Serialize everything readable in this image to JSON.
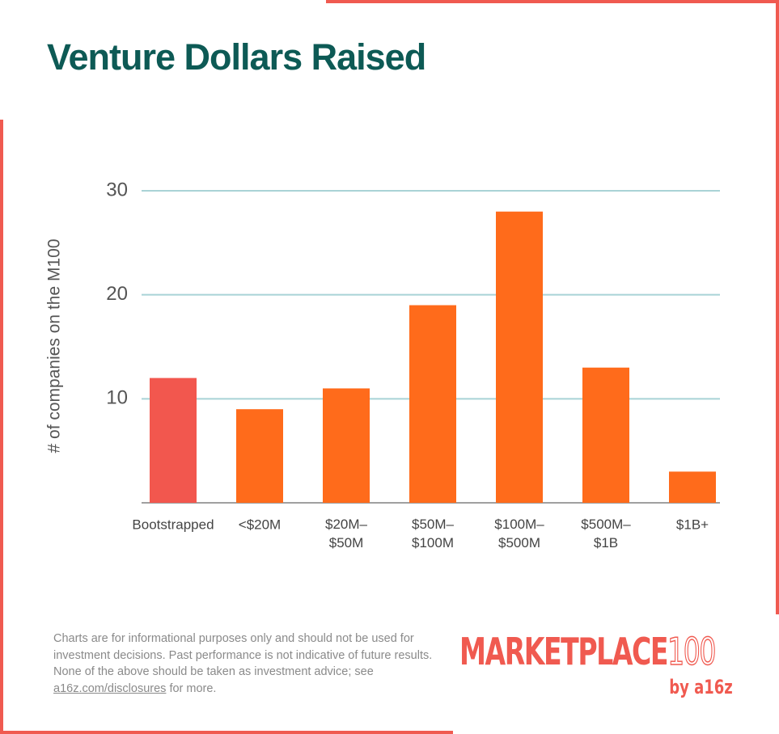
{
  "chart_data": {
    "type": "bar",
    "title": "Venture Dollars Raised",
    "y_label": "# of companies on the M100",
    "categories": [
      "Bootstrapped",
      "<$20M",
      "$20M–\n$50M",
      "$50M–\n$100M",
      "$100M–\n$500M",
      "$500M–\n$1B",
      "$1B+"
    ],
    "values": [
      12,
      9,
      11,
      19,
      28,
      13,
      3
    ],
    "colors": [
      "#f2574e",
      "#ff6b1b",
      "#ff6b1b",
      "#ff6b1b",
      "#ff6b1b",
      "#ff6b1b",
      "#ff6b1b"
    ],
    "ylim": [
      0,
      30
    ],
    "yticks": [
      10,
      20,
      30
    ],
    "grid": true
  },
  "footer": {
    "disclaimer_before": "Charts are for informational purposes only and should not be used for investment decisions. Past performance is not indicative of future results. None of the above should be taken as investment advice; see ",
    "link": "a16z.com/disclosures",
    "disclaimer_after": " for more.",
    "logo_word": "MARKETPLACE",
    "logo_number": "100",
    "logo_by": "by a16z"
  }
}
